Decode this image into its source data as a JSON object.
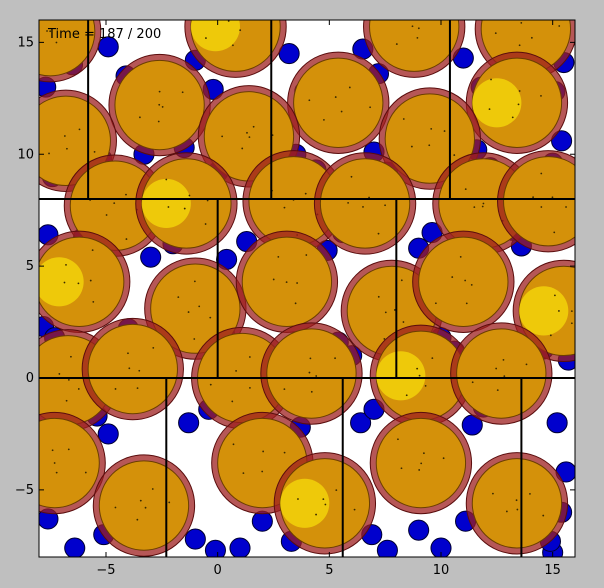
{
  "chart_data": {
    "type": "scatter",
    "title": "",
    "xlabel": "",
    "ylabel": "",
    "xlim": [
      -8,
      16
    ],
    "ylim": [
      -8,
      16
    ],
    "grid": false,
    "x_ticks": [
      -5,
      0,
      5,
      10,
      15
    ],
    "y_ticks": [
      -5,
      0,
      5,
      10,
      15
    ],
    "x_tick_labels": [
      "−5",
      "0",
      "5",
      "10",
      "15"
    ],
    "y_tick_labels": [
      "−5",
      "0",
      "5",
      "10",
      "15"
    ],
    "annotation": "Time = 187 / 200",
    "colors": {
      "background": "#ffffff",
      "figure": "#bfbfbf",
      "small_particles": "#0000cd",
      "large_particles_fill": "#d4910a",
      "large_particles_ring": "#9e1f1f",
      "highlight": "#f2d20a",
      "cell_lines": "#000000"
    },
    "cell_lines": {
      "horizontal_y": [
        8,
        0
      ],
      "vertical_segments": [
        {
          "x": -5.8,
          "y": [
            8,
            16
          ]
        },
        {
          "x": 2.4,
          "y": [
            8,
            16
          ]
        },
        {
          "x": 10.4,
          "y": [
            8,
            16
          ]
        },
        {
          "x": 0,
          "y": [
            0,
            8
          ]
        },
        {
          "x": 8,
          "y": [
            0,
            8
          ]
        },
        {
          "x": -2.3,
          "y": [
            -8,
            0
          ]
        },
        {
          "x": 5.6,
          "y": [
            -8,
            0
          ]
        },
        {
          "x": 13.6,
          "y": [
            -8,
            0
          ]
        }
      ]
    },
    "series": [
      {
        "marker": "large-particle",
        "radius": 2.0,
        "points": [
          [
            -7.5,
            15.5
          ],
          [
            0.8,
            15.7
          ],
          [
            8.8,
            15.7
          ],
          [
            13.8,
            15.6
          ],
          [
            -2.6,
            12.2
          ],
          [
            5.4,
            12.3
          ],
          [
            13.4,
            12.3
          ],
          [
            -6.8,
            10.6
          ],
          [
            1.4,
            10.8
          ],
          [
            9.5,
            10.7
          ],
          [
            -4.6,
            7.7
          ],
          [
            -1.4,
            7.8
          ],
          [
            3.4,
            7.9
          ],
          [
            6.6,
            7.8
          ],
          [
            11.9,
            7.8
          ],
          [
            14.8,
            7.9
          ],
          [
            -6.2,
            4.3
          ],
          [
            -1.0,
            3.1
          ],
          [
            3.1,
            4.3
          ],
          [
            7.8,
            3.0
          ],
          [
            11.0,
            4.3
          ],
          [
            15.5,
            3.0
          ],
          [
            -6.7,
            -0.1
          ],
          [
            -3.8,
            0.4
          ],
          [
            1.1,
            0.0
          ],
          [
            4.2,
            0.2
          ],
          [
            9.1,
            0.1
          ],
          [
            12.7,
            0.2
          ],
          [
            -7.3,
            -3.8
          ],
          [
            -3.3,
            -5.7
          ],
          [
            2.0,
            -3.8
          ],
          [
            4.8,
            -5.6
          ],
          [
            9.1,
            -3.8
          ],
          [
            13.4,
            -5.6
          ]
        ]
      },
      {
        "marker": "small-particle",
        "radius": 0.45,
        "points": [
          [
            -7.7,
            13.0
          ],
          [
            -6.5,
            14.0
          ],
          [
            -4.9,
            14.8
          ],
          [
            -4.1,
            13.5
          ],
          [
            -1.0,
            14.2
          ],
          [
            -0.2,
            12.9
          ],
          [
            3.2,
            14.5
          ],
          [
            3.9,
            12.8
          ],
          [
            6.5,
            14.7
          ],
          [
            7.2,
            13.6
          ],
          [
            11.0,
            14.3
          ],
          [
            11.8,
            13.0
          ],
          [
            15.5,
            14.1
          ],
          [
            15.1,
            12.8
          ],
          [
            -7.4,
            9.0
          ],
          [
            -5.2,
            9.8
          ],
          [
            -3.3,
            10.0
          ],
          [
            -1.5,
            10.3
          ],
          [
            0.0,
            9.2
          ],
          [
            3.5,
            10.0
          ],
          [
            4.4,
            9.3
          ],
          [
            7.0,
            10.1
          ],
          [
            7.6,
            9.2
          ],
          [
            11.6,
            10.2
          ],
          [
            12.2,
            9.4
          ],
          [
            15.4,
            10.6
          ],
          [
            15.0,
            9.6
          ],
          [
            -7.6,
            6.4
          ],
          [
            -6.0,
            6.3
          ],
          [
            -3.0,
            5.4
          ],
          [
            -2.0,
            6.0
          ],
          [
            0.4,
            5.3
          ],
          [
            1.3,
            6.1
          ],
          [
            4.9,
            5.7
          ],
          [
            5.6,
            6.5
          ],
          [
            9.0,
            5.8
          ],
          [
            9.6,
            6.5
          ],
          [
            13.6,
            5.9
          ],
          [
            13.2,
            6.6
          ],
          [
            -7.8,
            2.3
          ],
          [
            -7.3,
            1.8
          ],
          [
            -4.0,
            2.2
          ],
          [
            -3.3,
            1.5
          ],
          [
            0.3,
            2.0
          ],
          [
            1.5,
            1.4
          ],
          [
            5.4,
            1.6
          ],
          [
            6.0,
            1.0
          ],
          [
            10.0,
            1.8
          ],
          [
            10.6,
            1.2
          ],
          [
            14.6,
            1.3
          ],
          [
            15.7,
            0.8
          ],
          [
            -4.9,
            -2.5
          ],
          [
            -5.4,
            -1.7
          ],
          [
            -1.3,
            -2.0
          ],
          [
            -0.4,
            -1.4
          ],
          [
            3.7,
            -2.2
          ],
          [
            6.4,
            -2.0
          ],
          [
            7.0,
            -1.4
          ],
          [
            11.4,
            -2.1
          ],
          [
            11.9,
            -1.3
          ],
          [
            15.2,
            -2.0
          ],
          [
            15.6,
            -4.2
          ],
          [
            15.4,
            -6.0
          ],
          [
            -7.6,
            -6.3
          ],
          [
            -6.4,
            -7.6
          ],
          [
            -5.1,
            -7.0
          ],
          [
            -1.0,
            -7.2
          ],
          [
            -0.1,
            -7.7
          ],
          [
            1.0,
            -7.6
          ],
          [
            2.0,
            -6.4
          ],
          [
            3.3,
            -7.3
          ],
          [
            6.9,
            -7.0
          ],
          [
            7.6,
            -7.7
          ],
          [
            9.0,
            -6.8
          ],
          [
            10.0,
            -7.6
          ],
          [
            11.1,
            -6.4
          ],
          [
            15.0,
            -7.8
          ],
          [
            14.9,
            -7.3
          ]
        ]
      }
    ]
  }
}
